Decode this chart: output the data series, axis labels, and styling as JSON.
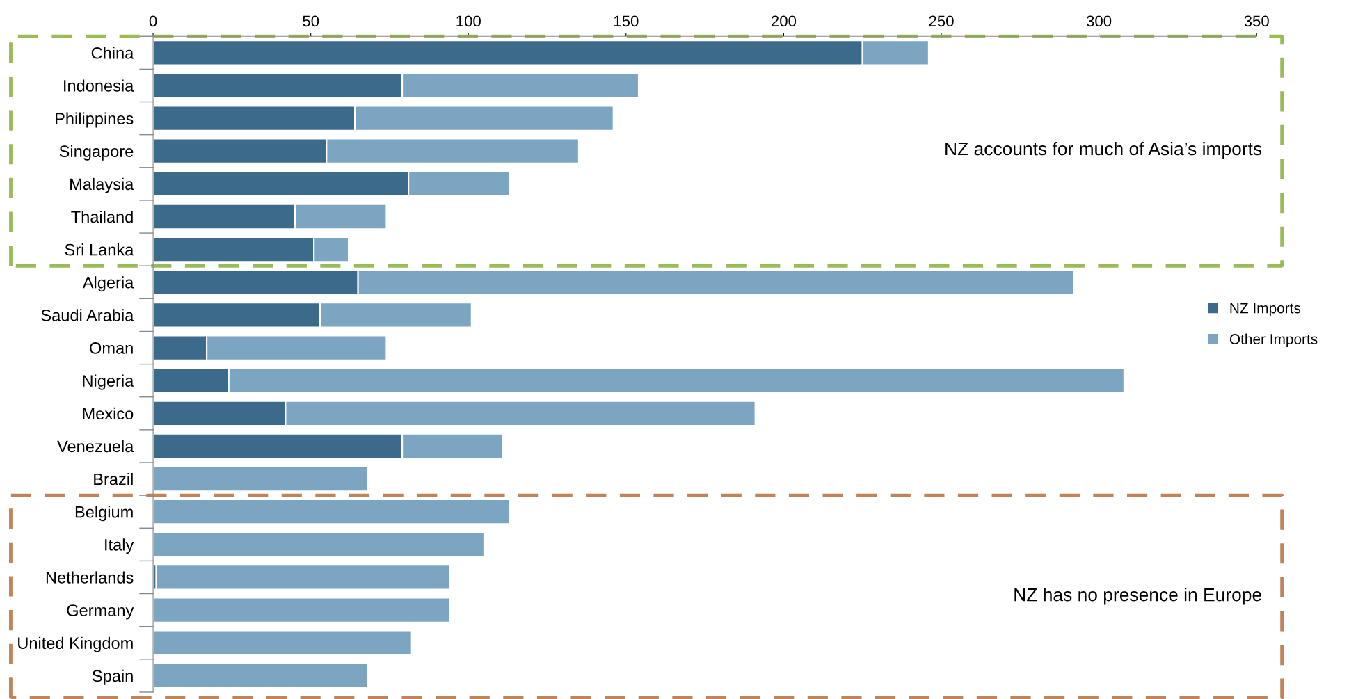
{
  "chart_data": {
    "type": "bar",
    "orientation": "horizontal",
    "stacked": true,
    "categories": [
      "China",
      "Indonesia",
      "Philippines",
      "Singapore",
      "Malaysia",
      "Thailand",
      "Sri Lanka",
      "Algeria",
      "Saudi Arabia",
      "Oman",
      "Nigeria",
      "Mexico",
      "Venezuela",
      "Brazil",
      "Belgium",
      "Italy",
      "Netherlands",
      "Germany",
      "United Kingdom",
      "Spain"
    ],
    "series": [
      {
        "name": "NZ Imports",
        "color": "#3b6a8a",
        "values": [
          225,
          79,
          64,
          55,
          81,
          45,
          51,
          65,
          53,
          17,
          24,
          42,
          79,
          0,
          0,
          0,
          1,
          0,
          0,
          0
        ]
      },
      {
        "name": "Other Imports",
        "color": "#7ba5c0",
        "values": [
          21,
          75,
          82,
          80,
          32,
          29,
          11,
          227,
          48,
          57,
          284,
          149,
          32,
          68,
          113,
          105,
          93,
          94,
          82,
          68
        ]
      }
    ],
    "xlim": [
      0,
      350
    ],
    "xticks": [
      0,
      50,
      100,
      150,
      200,
      250,
      300,
      350
    ],
    "grid": false,
    "legend": "right",
    "annotations": [
      "NZ accounts for much of Asia’s imports",
      "NZ has no presence in Europe"
    ]
  }
}
